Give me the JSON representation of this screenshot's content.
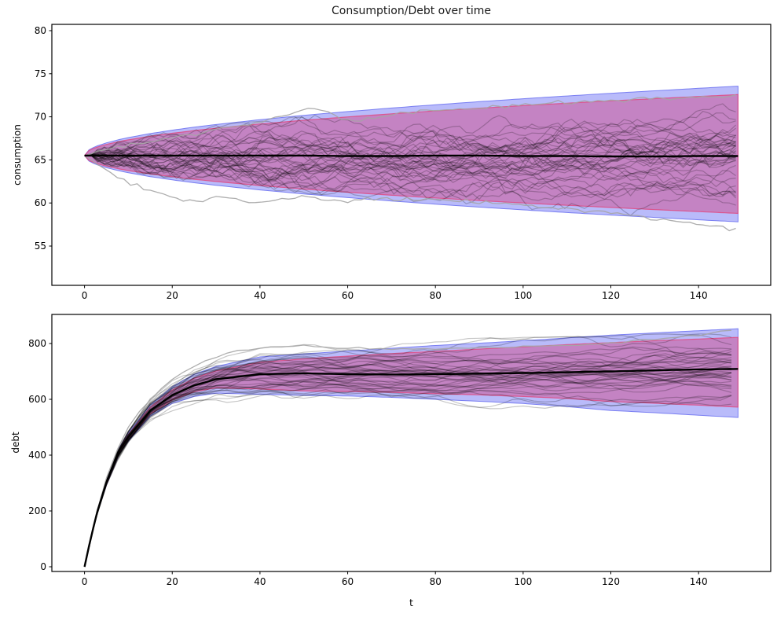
{
  "figure": {
    "title": "Consumption/Debt over time",
    "xlabel": "t",
    "background": "#ffffff"
  },
  "colors": {
    "outer_band_fill": "rgba(100,105,245,0.45)",
    "outer_band_edge": "rgba(105,110,240,0.85)",
    "inner_band_fill": "rgba(205,85,150,0.55)",
    "inner_band_edge": "rgba(225,70,125,0.8)",
    "mean_line": "#000000",
    "sample_path": "rgba(0,0,0,0.22)",
    "outlier_path": "rgba(165,165,165,0.9)",
    "axis": "#000000",
    "text": "#000000"
  },
  "chart_data": [
    {
      "type": "line",
      "name": "consumption",
      "ylabel": "consumption",
      "xlabel": "",
      "legend": "none",
      "grid": false,
      "xticks": [
        0,
        20,
        40,
        60,
        80,
        100,
        120,
        140
      ],
      "yticks": [
        55,
        60,
        65,
        70,
        75,
        80
      ],
      "xlim": [
        -7.45,
        156.45
      ],
      "ylim": [
        50.44,
        80.73
      ],
      "band_t": [
        0,
        1,
        2,
        3,
        5,
        8,
        10,
        15,
        20,
        25,
        30,
        40,
        50,
        60,
        70,
        80,
        90,
        100,
        110,
        120,
        130,
        140,
        149
      ],
      "outer_hi": [
        65.5,
        66.16,
        66.43,
        66.64,
        66.98,
        67.37,
        67.59,
        68.06,
        68.45,
        68.8,
        69.11,
        69.67,
        70.17,
        70.61,
        71.02,
        71.4,
        71.76,
        72.1,
        72.42,
        72.73,
        73.02,
        73.31,
        73.56
      ],
      "outer_lo": [
        65.5,
        64.87,
        64.61,
        64.41,
        64.09,
        63.72,
        63.51,
        63.06,
        62.68,
        62.35,
        62.05,
        61.52,
        61.05,
        60.62,
        60.23,
        59.86,
        59.52,
        59.2,
        58.89,
        58.6,
        58.32,
        58.05,
        57.81
      ],
      "inner_hi": [
        65.5,
        66.08,
        66.32,
        66.5,
        66.8,
        67.14,
        67.33,
        67.75,
        68.09,
        68.4,
        68.68,
        69.17,
        69.6,
        69.99,
        70.35,
        70.69,
        71.0,
        71.3,
        71.58,
        71.85,
        72.11,
        72.36,
        72.58
      ],
      "inner_lo": [
        65.5,
        64.95,
        64.72,
        64.55,
        64.27,
        63.94,
        63.76,
        63.37,
        63.04,
        62.75,
        62.49,
        62.02,
        61.61,
        61.24,
        60.9,
        60.58,
        60.28,
        60.0,
        59.73,
        59.48,
        59.23,
        59.0,
        58.79
      ],
      "mean": [
        65.5,
        65.5,
        65.5,
        65.5,
        65.5,
        65.5,
        65.5,
        65.5,
        65.5,
        65.5,
        65.5,
        65.5,
        65.5,
        65.45,
        65.45,
        65.5,
        65.5,
        65.45,
        65.45,
        65.4,
        65.4,
        65.45,
        65.45
      ],
      "outliers": [
        {
          "t": [
            0,
            3,
            6,
            9,
            12,
            16,
            20,
            24,
            27,
            30,
            34,
            38,
            42,
            46,
            50,
            55,
            60,
            66,
            72,
            80,
            88,
            96,
            104,
            112,
            120,
            128,
            136,
            143,
            149
          ],
          "v": [
            65.5,
            64.6,
            63.6,
            62.6,
            61.9,
            61.2,
            60.8,
            60.3,
            60.1,
            60.7,
            60.4,
            60.0,
            60.2,
            60.5,
            60.8,
            60.4,
            60.1,
            60.5,
            60.3,
            60.5,
            60.2,
            59.9,
            59.6,
            59.2,
            58.8,
            58.4,
            57.9,
            57.3,
            57.0
          ]
        },
        {
          "t": [
            0,
            5,
            10,
            15,
            20,
            25,
            30,
            35,
            40,
            44,
            48,
            51,
            53,
            55,
            58,
            62,
            66,
            70,
            75,
            80,
            90,
            100,
            110,
            120,
            130,
            140,
            149
          ],
          "v": [
            65.5,
            66.2,
            66.8,
            67.2,
            67.6,
            68.0,
            68.5,
            68.9,
            69.4,
            69.9,
            70.4,
            70.9,
            71.1,
            70.6,
            70.0,
            69.6,
            69.9,
            70.2,
            70.5,
            70.8,
            71.1,
            71.4,
            71.7,
            71.9,
            72.1,
            72.3,
            72.4
          ]
        }
      ],
      "sim": {
        "kind": "walk",
        "n_paths": 42,
        "dt": 1.5,
        "t_end": 149,
        "start": 65.5,
        "step_sd": 0.43,
        "revert": 0.009,
        "outlier_noise": 0.12
      }
    },
    {
      "type": "line",
      "name": "debt",
      "ylabel": "debt",
      "xlabel": "t",
      "legend": "none",
      "grid": false,
      "xticks": [
        0,
        20,
        40,
        60,
        80,
        100,
        120,
        140
      ],
      "yticks": [
        0,
        200,
        400,
        600,
        800
      ],
      "xlim": [
        -7.45,
        156.45
      ],
      "ylim": [
        -16.9,
        904.2
      ],
      "band_t": [
        0,
        1,
        2,
        3,
        5,
        8,
        10,
        15,
        20,
        25,
        30,
        40,
        50,
        60,
        70,
        80,
        90,
        100,
        110,
        120,
        130,
        140,
        149
      ],
      "outer_hi": [
        0,
        74,
        142,
        205,
        310,
        428,
        480,
        580,
        645,
        690,
        718,
        752,
        763,
        773,
        783,
        793,
        801,
        810,
        820,
        830,
        838,
        846,
        853
      ],
      "outer_lo": [
        0,
        72,
        138,
        199,
        292,
        408,
        450,
        540,
        585,
        610,
        622,
        618,
        614,
        612,
        607,
        600,
        593,
        585,
        574,
        560,
        552,
        543,
        535
      ],
      "inner_hi": [
        0,
        73.5,
        141,
        204,
        307,
        424,
        474,
        572,
        633,
        676,
        702,
        733,
        745,
        755,
        764,
        772,
        780,
        788,
        796,
        803,
        810,
        816,
        822
      ],
      "inner_lo": [
        0,
        72.5,
        139,
        200,
        295,
        412,
        455,
        548,
        597,
        627,
        641,
        637,
        630,
        628,
        625,
        620,
        616,
        610,
        603,
        592,
        586,
        579,
        572
      ],
      "mean": [
        0,
        73,
        140,
        202,
        303,
        420,
        465,
        560,
        615,
        650,
        672,
        690,
        693,
        690,
        689,
        690,
        692,
        694,
        697,
        700,
        704,
        707,
        709
      ],
      "outliers": [
        {
          "t": [
            0,
            2,
            4,
            6,
            8,
            10,
            13,
            16,
            20,
            24,
            28,
            32,
            36,
            40,
            45,
            50,
            55,
            60,
            70,
            80,
            90,
            100,
            110,
            120,
            130,
            140,
            149
          ],
          "v": [
            0,
            150,
            270,
            365,
            440,
            500,
            565,
            615,
            670,
            712,
            742,
            762,
            775,
            782,
            788,
            789,
            787,
            785,
            781,
            780,
            783,
            788,
            795,
            803,
            815,
            830,
            850
          ]
        }
      ],
      "sim": {
        "kind": "growth",
        "n_paths": 42,
        "dt": 2.5,
        "t_end": 149,
        "w_step_sd": 0.0135,
        "w_max": 0.185,
        "outlier_noise": 2.0
      }
    }
  ]
}
